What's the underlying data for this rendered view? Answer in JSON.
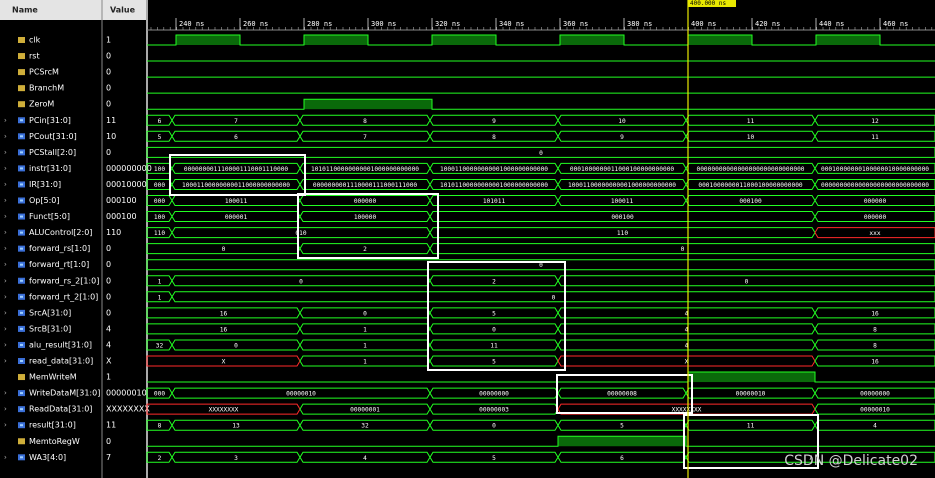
{
  "header": {
    "name": "Name",
    "value": "Value"
  },
  "ruler": [
    "240 ns",
    "260 ns",
    "280 ns",
    "300 ns",
    "320 ns",
    "340 ns",
    "360 ns",
    "380 ns",
    "400 ns",
    "420 ns",
    "440 ns",
    "460 ns"
  ],
  "cursor": "400.000 ns",
  "watermark": "CSDN @Delicate02",
  "rows": [
    {
      "name": "clk",
      "value": "1"
    },
    {
      "name": "rst",
      "value": "0"
    },
    {
      "name": "PCSrcM",
      "value": "0"
    },
    {
      "name": "BranchM",
      "value": "0"
    },
    {
      "name": "ZeroM",
      "value": "0"
    },
    {
      "name": "PCin[31:0]",
      "value": "11",
      "segments": [
        "6",
        "7",
        "8",
        "9",
        "10",
        "11",
        "12"
      ]
    },
    {
      "name": "PCout[31:0]",
      "value": "10",
      "segments": [
        "5",
        "6",
        "7",
        "8",
        "9",
        "10",
        "11"
      ]
    },
    {
      "name": "PCStall[2:0]",
      "value": "0",
      "segments": [
        "0",
        null,
        null,
        null,
        null,
        null,
        null
      ]
    },
    {
      "name": "instr[31:0]",
      "value": "000000000",
      "segments": [
        "100",
        "0000000011100001110001110000",
        "10101100000000001000000000000",
        "10001100000000001000000000000",
        "0001000000011000100000000000",
        "00000000000000000000000000000",
        "00010000000100000010000000000"
      ]
    },
    {
      "name": "IR[31:0]",
      "value": "00010000",
      "segments": [
        "000",
        "10001100000000011000000000000",
        "0000000001110000111000111000",
        "10101100000000001000000000000",
        "10001100000000001000000000000",
        "0001000000011000100000000000",
        "00000000000000000000000000000"
      ]
    },
    {
      "name": "Op[5:0]",
      "value": "000100",
      "segments": [
        "000",
        "100011",
        "000000",
        "101011",
        "100011",
        "000100",
        "000000"
      ]
    },
    {
      "name": "Funct[5:0]",
      "value": "000100",
      "segments": [
        "100",
        "000001",
        "100000",
        "000100",
        null,
        null,
        "000000"
      ]
    },
    {
      "name": "ALUControl[2:0]",
      "value": "110",
      "segments": [
        "110",
        "010",
        null,
        "110",
        null,
        null,
        "xxx"
      ]
    },
    {
      "name": "forward_rs[1:0]",
      "value": "0",
      "segments": [
        "0",
        null,
        "2",
        "0",
        null,
        null,
        null
      ]
    },
    {
      "name": "forward_rt[1:0]",
      "value": "0",
      "segments": [
        "0",
        null,
        null,
        null,
        null,
        null,
        null
      ]
    },
    {
      "name": "forward_rs_2[1:0]",
      "value": "0",
      "segments": [
        "1",
        "0",
        null,
        "2",
        "0",
        null,
        null
      ]
    },
    {
      "name": "forward_rt_2[1:0]",
      "value": "0",
      "segments": [
        "1",
        "0",
        null,
        null,
        null,
        null,
        null
      ]
    },
    {
      "name": "SrcA[31:0]",
      "value": "0",
      "segments": [
        "16",
        null,
        "0",
        "5",
        "4",
        null,
        "16"
      ]
    },
    {
      "name": "SrcB[31:0]",
      "value": "4",
      "segments": [
        "16",
        null,
        "1",
        "0",
        "4",
        null,
        "8"
      ]
    },
    {
      "name": "alu_result[31:0]",
      "value": "4",
      "segments": [
        "32",
        "0",
        "1",
        "11",
        "4",
        null,
        "8"
      ]
    },
    {
      "name": "read_data[31:0]",
      "value": "X",
      "segments": [
        "X",
        null,
        "1",
        "5",
        "X",
        null,
        "16"
      ]
    },
    {
      "name": "MemWriteM",
      "value": "1"
    },
    {
      "name": "WriteDataM[31:0]",
      "value": "00000010",
      "segments": [
        "000",
        "00000010",
        null,
        "00000000",
        "00000008",
        "00000010",
        "00000000"
      ]
    },
    {
      "name": "ReadData[31:0]",
      "value": "XXXXXXXX",
      "segments": [
        "XXXXXXXX",
        null,
        "00000001",
        "00000003",
        "XXXXXXXX",
        null,
        "00000010"
      ]
    },
    {
      "name": "result[31:0]",
      "value": "11",
      "segments": [
        "8",
        "13",
        "32",
        "0",
        "5",
        "11",
        "4"
      ]
    },
    {
      "name": "MemtoRegW",
      "value": "0"
    },
    {
      "name": "WA3[4:0]",
      "value": "7",
      "segments": [
        "2",
        "3",
        "4",
        "5",
        "6",
        "7",
        null
      ]
    }
  ]
}
